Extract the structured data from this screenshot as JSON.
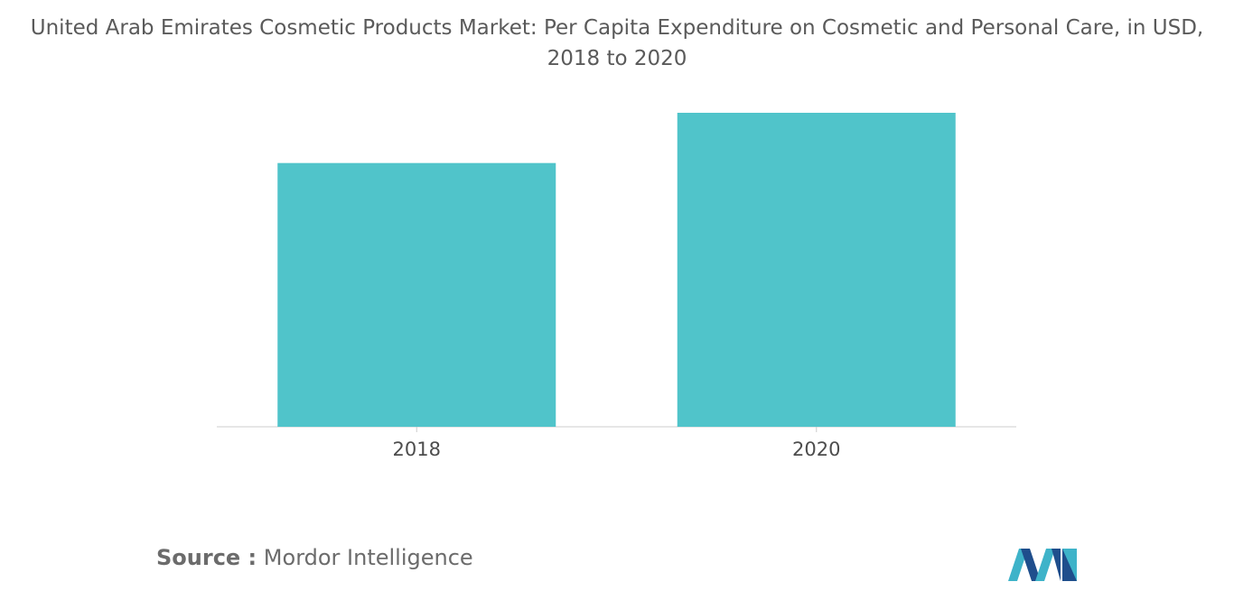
{
  "title_line1": "United Arab Emirates Cosmetic Products Market: Per Capita Expenditure on Cosmetic and Personal Care, in USD,",
  "title_line2": "2018 to 2020",
  "source": {
    "label": "Source :",
    "text": "Mordor Intelligence"
  },
  "logo": {
    "icon": "mordor-intelligence-logo-icon",
    "colors": [
      "#1f4e8c",
      "#3eb3c9"
    ]
  },
  "colors": {
    "bar": "#50c4ca",
    "axis": "#cccccc"
  },
  "chart_data": {
    "type": "bar",
    "categories": [
      "2018",
      "2020"
    ],
    "values": [
      84,
      100
    ],
    "ylim": [
      0,
      100
    ],
    "grid": false,
    "legend": "none"
  }
}
